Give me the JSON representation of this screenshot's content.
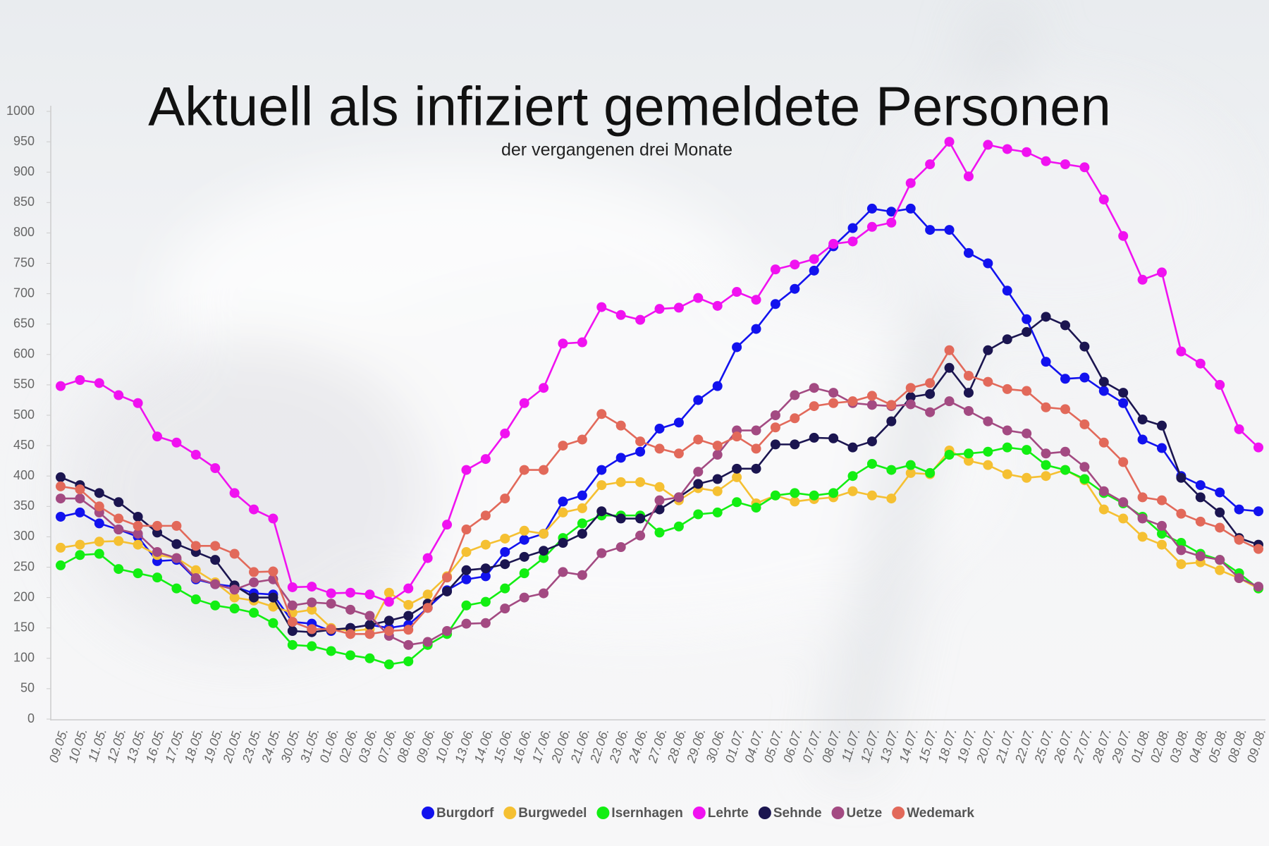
{
  "chart_data": {
    "type": "line",
    "title": "Aktuell als infiziert gemeldete Personen",
    "subtitle": "der vergangenen drei Monate",
    "categories": [
      "09.05.",
      "10.05.",
      "11.05.",
      "12.05.",
      "13.05.",
      "16.05.",
      "17.05.",
      "18.05.",
      "19.05.",
      "20.05.",
      "23.05.",
      "24.05.",
      "30.05.",
      "31.05.",
      "01.06.",
      "02.06.",
      "03.06.",
      "07.06.",
      "08.06.",
      "09.06.",
      "10.06.",
      "13.06.",
      "14.06.",
      "15.06.",
      "16.06.",
      "17.06.",
      "20.06.",
      "21.06.",
      "22.06.",
      "23.06.",
      "24.06.",
      "27.06.",
      "28.06.",
      "29.06.",
      "30.06.",
      "01.07.",
      "04.07.",
      "05.07.",
      "06.07.",
      "07.07.",
      "08.07.",
      "11.07.",
      "12.07.",
      "13.07.",
      "14.07.",
      "15.07.",
      "18.07.",
      "19.07.",
      "20.07.",
      "21.07.",
      "22.07.",
      "25.07.",
      "26.07.",
      "27.07.",
      "28.07.",
      "29.07.",
      "01.08.",
      "02.08.",
      "03.08.",
      "04.08.",
      "05.08.",
      "08.08.",
      "09.08."
    ],
    "series": [
      {
        "name": "Burgdorf",
        "color": "#1212ee",
        "values": [
          333,
          340,
          322,
          312,
          300,
          260,
          262,
          230,
          222,
          218,
          207,
          205,
          160,
          157,
          145,
          150,
          155,
          150,
          155,
          183,
          212,
          230,
          235,
          275,
          295,
          305,
          358,
          368,
          410,
          430,
          440,
          478,
          488,
          525,
          548,
          612,
          642,
          683,
          708,
          738,
          778,
          808,
          840,
          835,
          840,
          805,
          805,
          767,
          750,
          705,
          658,
          588,
          560,
          562,
          540,
          520,
          460,
          446,
          400,
          385,
          373,
          345,
          342
        ]
      },
      {
        "name": "Burgwedel",
        "color": "#f5c032",
        "values": [
          282,
          287,
          292,
          293,
          287,
          270,
          265,
          245,
          225,
          200,
          195,
          185,
          175,
          180,
          150,
          145,
          148,
          208,
          188,
          205,
          235,
          275,
          287,
          297,
          310,
          305,
          340,
          347,
          385,
          390,
          390,
          382,
          360,
          380,
          375,
          398,
          355,
          368,
          358,
          362,
          365,
          375,
          368,
          363,
          405,
          403,
          442,
          425,
          418,
          403,
          397,
          400,
          410,
          393,
          345,
          330,
          300,
          287,
          255,
          258,
          245,
          232,
          215
        ]
      },
      {
        "name": "Isernhagen",
        "color": "#12ee12",
        "values": [
          253,
          270,
          272,
          247,
          240,
          233,
          215,
          197,
          187,
          182,
          175,
          158,
          122,
          120,
          112,
          105,
          100,
          90,
          95,
          122,
          140,
          187,
          193,
          215,
          240,
          265,
          298,
          322,
          335,
          335,
          335,
          307,
          317,
          337,
          340,
          357,
          348,
          368,
          372,
          368,
          372,
          400,
          420,
          410,
          418,
          405,
          435,
          437,
          440,
          447,
          443,
          418,
          410,
          395,
          372,
          355,
          333,
          305,
          290,
          272,
          262,
          240,
          215
        ]
      },
      {
        "name": "Lehrte",
        "color": "#f012f0",
        "values": [
          548,
          558,
          553,
          533,
          520,
          465,
          455,
          435,
          413,
          372,
          345,
          330,
          217,
          218,
          207,
          208,
          205,
          193,
          215,
          265,
          320,
          410,
          428,
          470,
          520,
          545,
          618,
          620,
          678,
          665,
          657,
          675,
          677,
          693,
          680,
          703,
          690,
          740,
          748,
          757,
          782,
          786,
          810,
          817,
          882,
          913,
          950,
          893,
          945,
          938,
          933,
          918,
          913,
          908,
          855,
          795,
          723,
          735,
          605,
          585,
          550,
          477,
          447
        ]
      },
      {
        "name": "Sehnde",
        "color": "#1b1550",
        "values": [
          398,
          385,
          372,
          357,
          333,
          307,
          288,
          275,
          262,
          220,
          200,
          200,
          145,
          143,
          147,
          150,
          155,
          162,
          170,
          190,
          210,
          245,
          248,
          255,
          267,
          277,
          290,
          305,
          342,
          330,
          330,
          345,
          365,
          387,
          395,
          412,
          412,
          452,
          452,
          463,
          462,
          447,
          457,
          490,
          530,
          535,
          578,
          537,
          607,
          625,
          637,
          662,
          648,
          613,
          555,
          537,
          493,
          483,
          397,
          365,
          340,
          298,
          287
        ]
      },
      {
        "name": "Uetze",
        "color": "#a34a82",
        "values": [
          363,
          363,
          340,
          312,
          305,
          275,
          265,
          232,
          222,
          213,
          225,
          230,
          187,
          192,
          190,
          180,
          170,
          137,
          122,
          127,
          145,
          157,
          158,
          182,
          200,
          207,
          242,
          237,
          273,
          283,
          302,
          360,
          365,
          407,
          435,
          475,
          475,
          500,
          533,
          545,
          537,
          520,
          517,
          515,
          518,
          505,
          523,
          507,
          490,
          475,
          470,
          437,
          440,
          415,
          375,
          357,
          330,
          318,
          278,
          268,
          262,
          232,
          218
        ]
      },
      {
        "name": "Wedemark",
        "color": "#e2695a",
        "values": [
          383,
          378,
          350,
          330,
          318,
          318,
          318,
          285,
          285,
          272,
          242,
          243,
          160,
          148,
          148,
          140,
          140,
          145,
          147,
          183,
          233,
          312,
          335,
          363,
          410,
          410,
          450,
          460,
          502,
          483,
          457,
          445,
          437,
          460,
          450,
          465,
          445,
          480,
          495,
          515,
          520,
          523,
          532,
          517,
          545,
          553,
          607,
          565,
          555,
          543,
          540,
          513,
          510,
          485,
          455,
          423,
          365,
          360,
          338,
          325,
          315,
          295,
          280
        ]
      }
    ],
    "ylim": [
      0,
      1000
    ],
    "yticks": [
      0,
      50,
      100,
      150,
      200,
      250,
      300,
      350,
      400,
      450,
      500,
      550,
      600,
      650,
      700,
      750,
      800,
      850,
      900,
      950,
      1000
    ],
    "legend": "bottom"
  }
}
